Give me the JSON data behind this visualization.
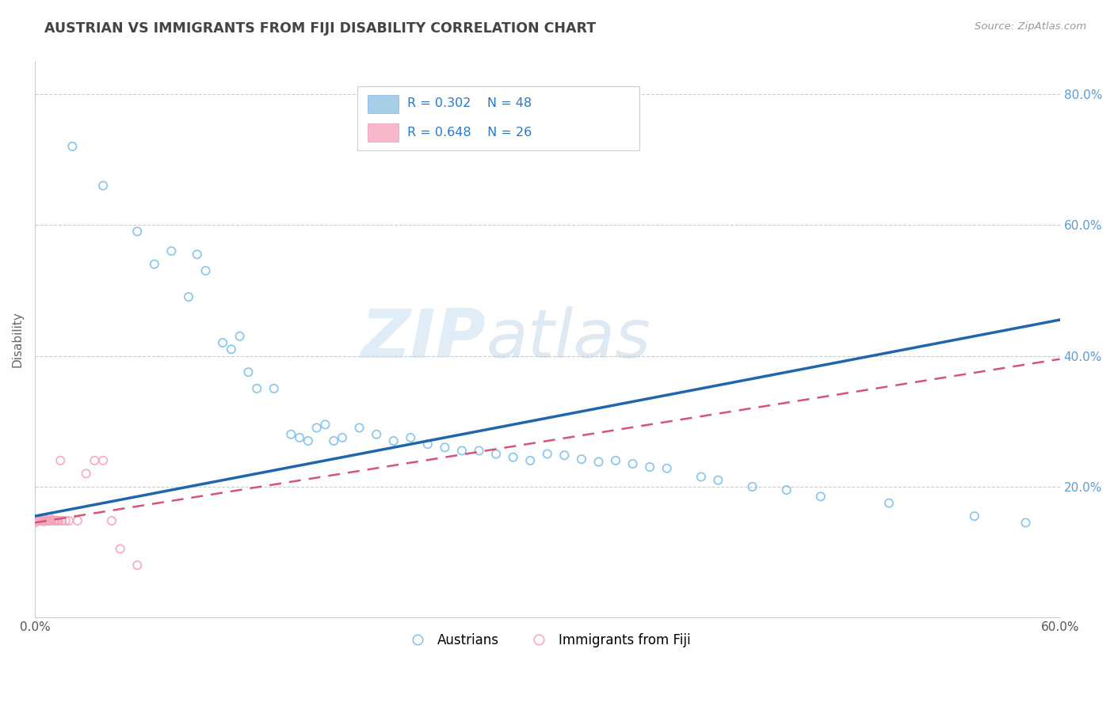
{
  "title": "AUSTRIAN VS IMMIGRANTS FROM FIJI DISABILITY CORRELATION CHART",
  "source_text": "Source: ZipAtlas.com",
  "ylabel": "Disability",
  "xlim": [
    0.0,
    0.6
  ],
  "ylim": [
    0.0,
    0.85
  ],
  "color_austrians": "#7bbde8",
  "color_fiji": "#f4a0b8",
  "color_line_austrians": "#2166ac",
  "color_line_fiji": "#d4547a",
  "austrians_x": [
    0.022,
    0.04,
    0.06,
    0.07,
    0.08,
    0.09,
    0.095,
    0.1,
    0.11,
    0.115,
    0.12,
    0.125,
    0.13,
    0.14,
    0.15,
    0.155,
    0.16,
    0.165,
    0.17,
    0.175,
    0.18,
    0.19,
    0.2,
    0.21,
    0.22,
    0.23,
    0.24,
    0.25,
    0.26,
    0.27,
    0.28,
    0.29,
    0.3,
    0.31,
    0.32,
    0.33,
    0.34,
    0.35,
    0.36,
    0.37,
    0.39,
    0.4,
    0.42,
    0.44,
    0.46,
    0.5,
    0.55,
    0.58
  ],
  "austrians_y": [
    0.72,
    0.66,
    0.59,
    0.54,
    0.56,
    0.49,
    0.555,
    0.53,
    0.42,
    0.41,
    0.43,
    0.375,
    0.35,
    0.35,
    0.28,
    0.275,
    0.27,
    0.29,
    0.295,
    0.27,
    0.275,
    0.29,
    0.28,
    0.27,
    0.275,
    0.265,
    0.26,
    0.255,
    0.255,
    0.25,
    0.245,
    0.24,
    0.25,
    0.248,
    0.242,
    0.238,
    0.24,
    0.235,
    0.23,
    0.228,
    0.215,
    0.21,
    0.2,
    0.195,
    0.185,
    0.175,
    0.155,
    0.145
  ],
  "fiji_x": [
    0.0,
    0.001,
    0.002,
    0.003,
    0.004,
    0.005,
    0.006,
    0.007,
    0.008,
    0.009,
    0.01,
    0.011,
    0.012,
    0.013,
    0.014,
    0.015,
    0.016,
    0.018,
    0.02,
    0.025,
    0.03,
    0.035,
    0.04,
    0.045,
    0.05,
    0.06
  ],
  "fiji_y": [
    0.145,
    0.148,
    0.148,
    0.15,
    0.148,
    0.147,
    0.15,
    0.148,
    0.148,
    0.148,
    0.15,
    0.148,
    0.148,
    0.148,
    0.148,
    0.24,
    0.148,
    0.148,
    0.148,
    0.148,
    0.22,
    0.24,
    0.24,
    0.148,
    0.105,
    0.08
  ],
  "line_aus_x0": 0.0,
  "line_aus_y0": 0.155,
  "line_aus_x1": 0.6,
  "line_aus_y1": 0.455,
  "line_fiji_x0": 0.0,
  "line_fiji_y0": 0.145,
  "line_fiji_x1": 0.6,
  "line_fiji_y1": 0.395
}
